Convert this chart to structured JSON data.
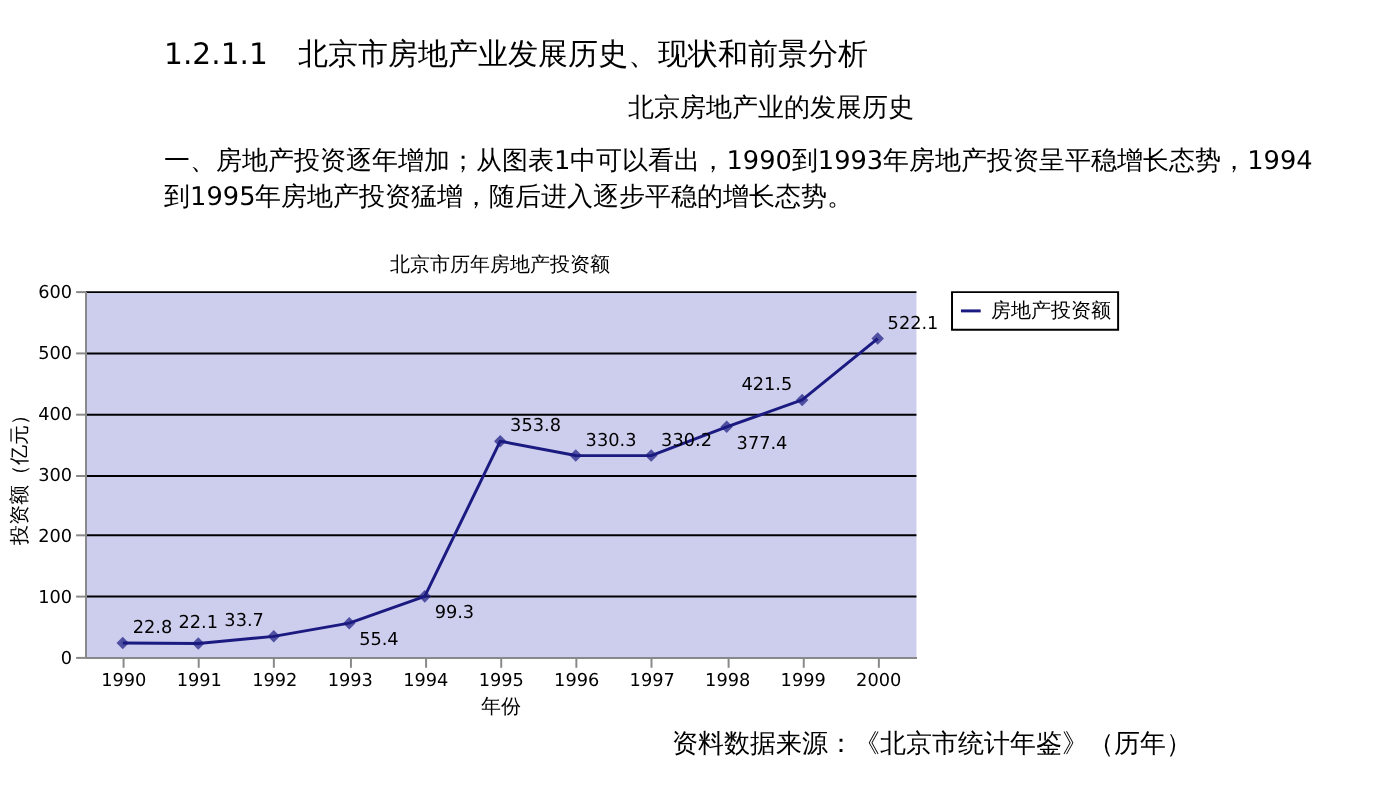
{
  "chart_data": {
    "type": "line",
    "title": "北京市历年房地产投资额",
    "xlabel": "年份",
    "ylabel": "投资额（亿元）",
    "annotations": [
      "1.2.1.1　北京市房地产业发展历史、现状和前景分析",
      "北京房地产业的发展历史",
      "一、房地产投资逐年增加；从图表1中可以看出，1990到1993年房地产投资呈平稳增长态势，1994到1995年房地产投资猛增，随后进入逐步平稳的增长态势。",
      "资料数据来源：《北京市统计年鉴》（历年）"
    ],
    "categories": [
      "1990",
      "1991",
      "1992",
      "1993",
      "1994",
      "1995",
      "1996",
      "1997",
      "1998",
      "1999",
      "2000"
    ],
    "series": [
      {
        "name": "房地产投资额",
        "color": "#1a1a80",
        "values": [
          22.8,
          22.1,
          33.7,
          55.4,
          99.3,
          353.8,
          330.3,
          330.2,
          377.4,
          421.5,
          522.1
        ]
      }
    ],
    "ylim": [
      0,
      600
    ],
    "yticks": [
      0,
      100,
      200,
      300,
      400,
      500,
      600
    ],
    "grid": "y",
    "legend": "right",
    "marker": "diamond",
    "line_style": "solid",
    "data_labels": true
  }
}
